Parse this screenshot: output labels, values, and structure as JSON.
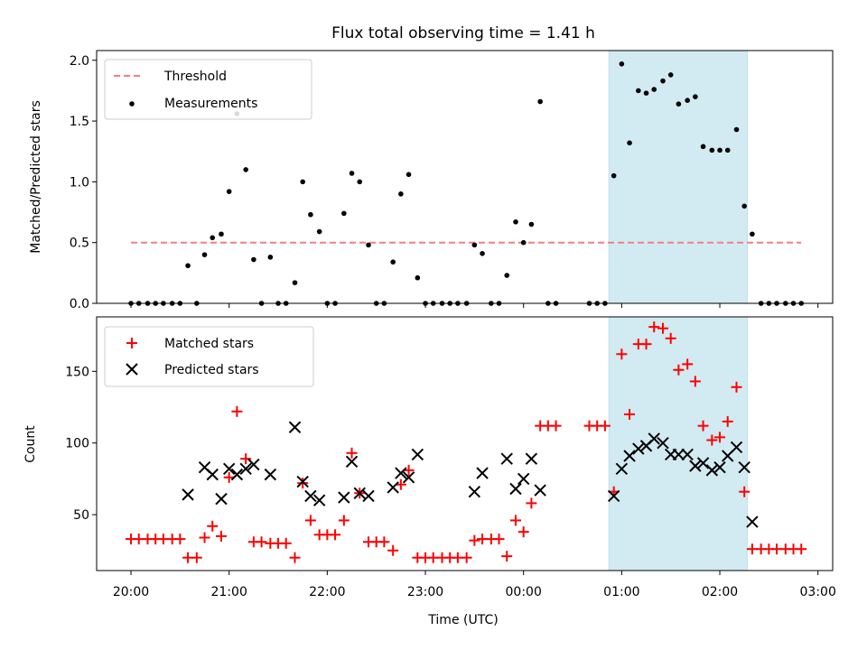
{
  "chart_data": {
    "type": "scatter",
    "title": "Flux total observing time = 1.41 h",
    "xlabel": "Time (UTC)",
    "x_ticks": [
      "20:00",
      "21:00",
      "22:00",
      "23:00",
      "00:00",
      "01:00",
      "02:00",
      "03:00"
    ],
    "x_tick_hours": [
      0,
      1,
      2,
      3,
      4,
      5,
      6,
      7
    ],
    "x_range_hours_after_20": [
      -0.35,
      7.15
    ],
    "highlight_span_hours_after_20": [
      4.87,
      6.28
    ],
    "highlight_color": "#add8e6",
    "panels": [
      {
        "name": "ratio",
        "ylabel": "Matched/Predicted stars",
        "ylim": [
          0,
          2.08
        ],
        "yticks": [
          0.0,
          0.5,
          1.0,
          1.5,
          2.0
        ],
        "ytick_labels": [
          "0.0",
          "0.5",
          "1.0",
          "1.5",
          "2.0"
        ],
        "legend_position": "top-left",
        "threshold": {
          "label": "Threshold",
          "value": 0.5,
          "x_range": [
            0,
            6.83
          ],
          "color": "#f08080"
        },
        "series": [
          {
            "name": "Measurements",
            "marker": "dot",
            "color": "#000000",
            "points": [
              [
                0.0,
                0
              ],
              [
                0.08,
                0
              ],
              [
                0.17,
                0
              ],
              [
                0.25,
                0
              ],
              [
                0.33,
                0
              ],
              [
                0.42,
                0
              ],
              [
                0.5,
                0
              ],
              [
                0.58,
                0.31
              ],
              [
                0.67,
                0
              ],
              [
                0.75,
                0.4
              ],
              [
                0.83,
                0.54
              ],
              [
                0.92,
                0.57
              ],
              [
                1.0,
                0.92
              ],
              [
                1.08,
                1.56
              ],
              [
                1.17,
                1.1
              ],
              [
                1.25,
                0.36
              ],
              [
                1.33,
                0
              ],
              [
                1.42,
                0.38
              ],
              [
                1.5,
                0
              ],
              [
                1.58,
                0
              ],
              [
                1.67,
                0.17
              ],
              [
                1.75,
                1.0
              ],
              [
                1.83,
                0.73
              ],
              [
                1.92,
                0.59
              ],
              [
                2.0,
                0
              ],
              [
                2.08,
                0
              ],
              [
                2.17,
                0.74
              ],
              [
                2.25,
                1.07
              ],
              [
                2.33,
                1.0
              ],
              [
                2.42,
                0.48
              ],
              [
                2.5,
                0
              ],
              [
                2.58,
                0
              ],
              [
                2.67,
                0.34
              ],
              [
                2.75,
                0.9
              ],
              [
                2.83,
                1.06
              ],
              [
                2.92,
                0.21
              ],
              [
                3.0,
                0
              ],
              [
                3.08,
                0
              ],
              [
                3.17,
                0
              ],
              [
                3.25,
                0
              ],
              [
                3.33,
                0
              ],
              [
                3.42,
                0
              ],
              [
                3.5,
                0.48
              ],
              [
                3.58,
                0.41
              ],
              [
                3.67,
                0
              ],
              [
                3.75,
                0
              ],
              [
                3.83,
                0.23
              ],
              [
                3.92,
                0.67
              ],
              [
                4.0,
                0.5
              ],
              [
                4.08,
                0.65
              ],
              [
                4.17,
                1.66
              ],
              [
                4.25,
                0
              ],
              [
                4.33,
                0
              ],
              [
                4.67,
                0
              ],
              [
                4.75,
                0
              ],
              [
                4.83,
                0
              ],
              [
                4.92,
                1.05
              ],
              [
                5.0,
                1.97
              ],
              [
                5.08,
                1.32
              ],
              [
                5.17,
                1.75
              ],
              [
                5.25,
                1.73
              ],
              [
                5.33,
                1.76
              ],
              [
                5.42,
                1.83
              ],
              [
                5.5,
                1.88
              ],
              [
                5.58,
                1.64
              ],
              [
                5.67,
                1.67
              ],
              [
                5.75,
                1.7
              ],
              [
                5.83,
                1.29
              ],
              [
                5.92,
                1.26
              ],
              [
                6.0,
                1.26
              ],
              [
                6.08,
                1.26
              ],
              [
                6.17,
                1.43
              ],
              [
                6.25,
                0.8
              ],
              [
                6.33,
                0.57
              ],
              [
                6.42,
                0
              ],
              [
                6.5,
                0
              ],
              [
                6.58,
                0
              ],
              [
                6.67,
                0
              ],
              [
                6.75,
                0
              ],
              [
                6.83,
                0
              ]
            ]
          }
        ]
      },
      {
        "name": "count",
        "ylabel": "Count",
        "ylim": [
          11,
          188
        ],
        "yticks": [
          50,
          100,
          150
        ],
        "ytick_labels": [
          "50",
          "100",
          "150"
        ],
        "legend_position": "top-left",
        "series": [
          {
            "name": "Matched stars",
            "marker": "plus",
            "color": "#ff0000",
            "points": [
              [
                0.0,
                33
              ],
              [
                0.08,
                33
              ],
              [
                0.17,
                33
              ],
              [
                0.25,
                33
              ],
              [
                0.33,
                33
              ],
              [
                0.42,
                33
              ],
              [
                0.5,
                33
              ],
              [
                0.58,
                20
              ],
              [
                0.67,
                20
              ],
              [
                0.75,
                34
              ],
              [
                0.83,
                42
              ],
              [
                0.92,
                35
              ],
              [
                1.0,
                76
              ],
              [
                1.08,
                122
              ],
              [
                1.17,
                89
              ],
              [
                1.25,
                31
              ],
              [
                1.33,
                31
              ],
              [
                1.42,
                30
              ],
              [
                1.5,
                30
              ],
              [
                1.58,
                30
              ],
              [
                1.67,
                20
              ],
              [
                1.75,
                72
              ],
              [
                1.83,
                46
              ],
              [
                1.92,
                36
              ],
              [
                2.0,
                36
              ],
              [
                2.08,
                36
              ],
              [
                2.17,
                46
              ],
              [
                2.25,
                93
              ],
              [
                2.33,
                65
              ],
              [
                2.42,
                31
              ],
              [
                2.5,
                31
              ],
              [
                2.58,
                31
              ],
              [
                2.67,
                25
              ],
              [
                2.75,
                71
              ],
              [
                2.83,
                81
              ],
              [
                2.92,
                20
              ],
              [
                3.0,
                20
              ],
              [
                3.08,
                20
              ],
              [
                3.17,
                20
              ],
              [
                3.25,
                20
              ],
              [
                3.33,
                20
              ],
              [
                3.42,
                20
              ],
              [
                3.5,
                32
              ],
              [
                3.58,
                33
              ],
              [
                3.67,
                33
              ],
              [
                3.75,
                33
              ],
              [
                3.83,
                21
              ],
              [
                3.92,
                46
              ],
              [
                4.0,
                38
              ],
              [
                4.08,
                58
              ],
              [
                4.17,
                112
              ],
              [
                4.25,
                112
              ],
              [
                4.33,
                112
              ],
              [
                4.67,
                112
              ],
              [
                4.75,
                112
              ],
              [
                4.83,
                112
              ],
              [
                4.92,
                66
              ],
              [
                5.0,
                162
              ],
              [
                5.08,
                120
              ],
              [
                5.17,
                169
              ],
              [
                5.25,
                169
              ],
              [
                5.33,
                181
              ],
              [
                5.42,
                180
              ],
              [
                5.5,
                173
              ],
              [
                5.58,
                151
              ],
              [
                5.67,
                155
              ],
              [
                5.75,
                143
              ],
              [
                5.83,
                112
              ],
              [
                5.92,
                102
              ],
              [
                6.0,
                104
              ],
              [
                6.08,
                115
              ],
              [
                6.17,
                139
              ],
              [
                6.25,
                66
              ],
              [
                6.33,
                26
              ],
              [
                6.42,
                26
              ],
              [
                6.5,
                26
              ],
              [
                6.58,
                26
              ],
              [
                6.67,
                26
              ],
              [
                6.75,
                26
              ],
              [
                6.83,
                26
              ]
            ]
          },
          {
            "name": "Predicted stars",
            "marker": "x",
            "color": "#000000",
            "points": [
              [
                0.58,
                64
              ],
              [
                0.75,
                83
              ],
              [
                0.83,
                78
              ],
              [
                0.92,
                61
              ],
              [
                1.0,
                82
              ],
              [
                1.08,
                78
              ],
              [
                1.17,
                82
              ],
              [
                1.25,
                85
              ],
              [
                1.42,
                78
              ],
              [
                1.67,
                111
              ],
              [
                1.75,
                73
              ],
              [
                1.83,
                63
              ],
              [
                1.92,
                60
              ],
              [
                2.17,
                62
              ],
              [
                2.25,
                87
              ],
              [
                2.33,
                65
              ],
              [
                2.42,
                63
              ],
              [
                2.67,
                69
              ],
              [
                2.75,
                79
              ],
              [
                2.83,
                76
              ],
              [
                2.92,
                92
              ],
              [
                3.5,
                66
              ],
              [
                3.58,
                79
              ],
              [
                3.83,
                89
              ],
              [
                3.92,
                68
              ],
              [
                4.0,
                75
              ],
              [
                4.08,
                89
              ],
              [
                4.17,
                67
              ],
              [
                4.92,
                63
              ],
              [
                5.0,
                82
              ],
              [
                5.08,
                91
              ],
              [
                5.17,
                96
              ],
              [
                5.25,
                98
              ],
              [
                5.33,
                103
              ],
              [
                5.42,
                100
              ],
              [
                5.5,
                92
              ],
              [
                5.58,
                92
              ],
              [
                5.67,
                92
              ],
              [
                5.75,
                84
              ],
              [
                5.83,
                86
              ],
              [
                5.92,
                81
              ],
              [
                6.0,
                83
              ],
              [
                6.08,
                91
              ],
              [
                6.17,
                97
              ],
              [
                6.25,
                83
              ],
              [
                6.33,
                45
              ]
            ]
          }
        ]
      }
    ]
  }
}
